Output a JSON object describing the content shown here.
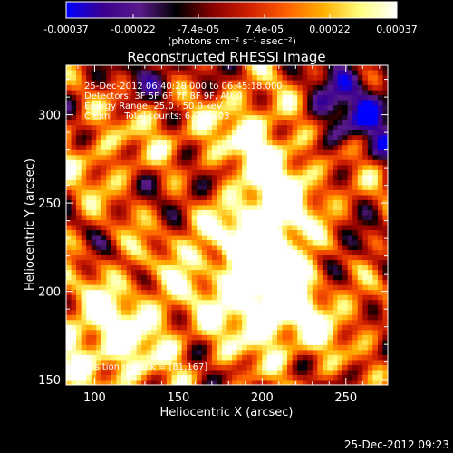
{
  "chart_data": {
    "type": "heatmap",
    "title": "Reconstructed RHESSI Image",
    "xlabel": "Heliocentric X (arcsec)",
    "ylabel": "Heliocentric Y (arcsec)",
    "xlim": [
      83,
      275
    ],
    "ylim": [
      147,
      328
    ],
    "xticks": [
      100,
      150,
      200,
      250
    ],
    "yticks": [
      150,
      200,
      250,
      300
    ],
    "colorbar": {
      "ticks": [
        "-0.00037",
        "-0.00022",
        "-7.4e-05",
        "7.4e-05",
        "0.00022",
        "0.00037"
      ],
      "label": "(photons cm⁻² s⁻¹ asec⁻²)",
      "range": [
        -0.00037,
        0.00037
      ],
      "colormap": [
        "#0000ff",
        "#3a0090",
        "#5a1a8a",
        "#000000",
        "#8a0000",
        "#d02000",
        "#ff6000",
        "#ffb000",
        "#ffff80",
        "#ffffff"
      ]
    },
    "info_lines": [
      "25-Dec-2012 06:40:28.000 to 06:45:18.000",
      "Detectors: 3F 5F 6F 7F 8F 9F, Att 0",
      "Energy Range: 25.0 - 50.0 keV",
      "Clean     Total counts: 6.99E+03"
    ],
    "peak_label": "Position of Peak = [81,167]",
    "peak": [
      81,
      167
    ],
    "grid": false
  },
  "footer": {
    "timestamp": "25-Dec-2012 09:23"
  }
}
